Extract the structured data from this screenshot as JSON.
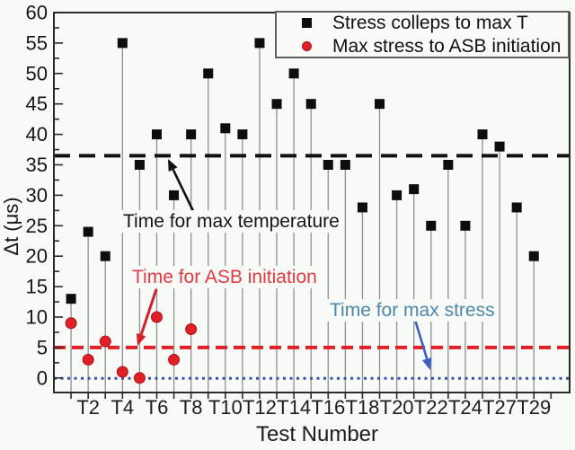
{
  "figure": {
    "background": "#f8faf7",
    "frame_color": "#2b2b2b"
  },
  "legend": {
    "items": [
      {
        "label": "Stress colleps to max T",
        "marker": "square-marker-icon",
        "color": "#0d0d0d"
      },
      {
        "label": "Max stress to ASB initiation",
        "marker": "circle-marker-icon",
        "color": "#e02027"
      }
    ]
  },
  "annotations": {
    "max_temperature": {
      "text": "Time for max temperature",
      "color": "#151515",
      "arrow_color": "#111111"
    },
    "asb_initiation": {
      "text": "Time for ASB initiation",
      "color": "#e23a40",
      "arrow_color": "#d5202a"
    },
    "max_stress": {
      "text": "Time for max stress",
      "color": "#4e86ac",
      "arrow_color": "#3e5ec4"
    }
  },
  "chart_data": {
    "type": "scatter",
    "title": "",
    "xlabel": "Test Number",
    "ylabel": "Δt (μs)",
    "ylim": [
      -2.5,
      60
    ],
    "ytick_step": 5,
    "ytick_minor_step": 2.5,
    "x_position_count": 29,
    "x_tick_positions": [
      2,
      4,
      6,
      8,
      10,
      12,
      14,
      16,
      18,
      20,
      22,
      24,
      26,
      28
    ],
    "x_tick_labels": [
      "T2",
      "T4",
      "T6",
      "T8",
      "T10",
      "T12",
      "T14",
      "T16",
      "T18",
      "T20",
      "T22",
      "T24",
      "T27",
      "T29"
    ],
    "grid": false,
    "legend_position": "top-right",
    "stem_color": "#8f8f8f",
    "series": [
      {
        "name": "Stress colleps to max T",
        "marker": "square",
        "color": "#0d0d0d",
        "values": [
          13,
          24,
          20,
          55,
          35,
          40,
          30,
          40,
          50,
          41,
          40,
          55,
          45,
          50,
          45,
          35,
          35,
          28,
          45,
          30,
          31,
          25,
          35,
          25,
          40,
          38,
          28,
          20
        ]
      },
      {
        "name": "Max stress to ASB initiation",
        "marker": "circle",
        "color": "#e02027",
        "points": [
          [
            1,
            9
          ],
          [
            2,
            3
          ],
          [
            3,
            6
          ],
          [
            4,
            1
          ],
          [
            5,
            0
          ],
          [
            6,
            10
          ],
          [
            7,
            3
          ],
          [
            8,
            8
          ]
        ]
      }
    ],
    "reference_lines": [
      {
        "name": "Time for max temperature",
        "value": 36.5,
        "style": "dashed",
        "color": "#111111"
      },
      {
        "name": "Time for ASB initiation",
        "value": 5,
        "style": "dashed",
        "color": "#e02027"
      },
      {
        "name": "Time for max stress",
        "value": 0,
        "style": "dotted",
        "color": "#3c55a8"
      }
    ]
  }
}
